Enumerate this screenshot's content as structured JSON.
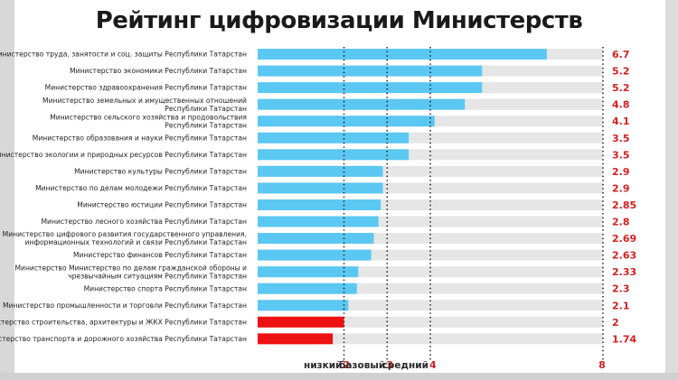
{
  "title": "Рейтинг цифровизации Министерств",
  "chart_data": {
    "type": "bar",
    "orientation": "horizontal",
    "title": "Рейтинг цифровизации Министерств",
    "xlim": [
      0,
      8
    ],
    "colors": {
      "bar": "#5ac8f2",
      "bar_low": "#ee1111",
      "track": "#e6e6e6",
      "value_text": "#d42020"
    },
    "categories": [
      [
        "Министерство труда, занятости и соц. защиты Республики Татарстан"
      ],
      [
        "Министерство экономики Республики Татарстан"
      ],
      [
        "Министерство здравоохранения Республики Татарстан"
      ],
      [
        "Министерство земельных и имущественных отношений",
        "Республики Татарстан"
      ],
      [
        "Министерство сельского хозяйства и продовольствия",
        "Республики Татарстан"
      ],
      [
        "Министерство образования и науки Республики Татарстан"
      ],
      [
        "Министерство экологии и природных ресурсов Республики Татарстан"
      ],
      [
        "Министерство культуры Республики Татарстан"
      ],
      [
        "Министерство по делам молодежи Республики Татарстан"
      ],
      [
        "Министерство юстиции Республики Татарстан"
      ],
      [
        "Министерство лесного хозяйства Республики Татарстан"
      ],
      [
        "Министерство цифрового развития государственного управления,",
        "информационных технологий и связи Республики Татарстан"
      ],
      [
        "Министерство финансов Республики Татарстан"
      ],
      [
        "Министерство Министерство по делам гражданской обороны и",
        "чрезвычайным ситуациям  Республики Татарстан"
      ],
      [
        "Министерство спорта  Республики Татарстан"
      ],
      [
        "Министерство промышленности и торговли Республики Татарстан"
      ],
      [
        "Министерство строительства, архитектуры и ЖКХ  Республики Татарстан"
      ],
      [
        "Министерство транспорта и дорожного хозяйства Республики Татарстан"
      ]
    ],
    "values": [
      6.7,
      5.2,
      5.2,
      4.8,
      4.1,
      3.5,
      3.5,
      2.9,
      2.9,
      2.85,
      2.8,
      2.69,
      2.63,
      2.33,
      2.3,
      2.1,
      2,
      1.74
    ],
    "value_labels": [
      "6.7",
      "5.2",
      "5.2",
      "4.8",
      "4.1",
      "3.5",
      "3.5",
      "2.9",
      "2.9",
      "2.85",
      "2.8",
      "2.69",
      "2.63",
      "2.33",
      "2.3",
      "2.1",
      "2",
      "1.74"
    ],
    "low_threshold": 2,
    "reference_levels": [
      {
        "name": "низкий",
        "value": 2,
        "label": "2"
      },
      {
        "name": "базовый",
        "value": 3,
        "label": "3"
      },
      {
        "name": "средний",
        "value": 4,
        "label": "4"
      },
      {
        "name": "",
        "value": 8,
        "label": "8"
      }
    ]
  }
}
